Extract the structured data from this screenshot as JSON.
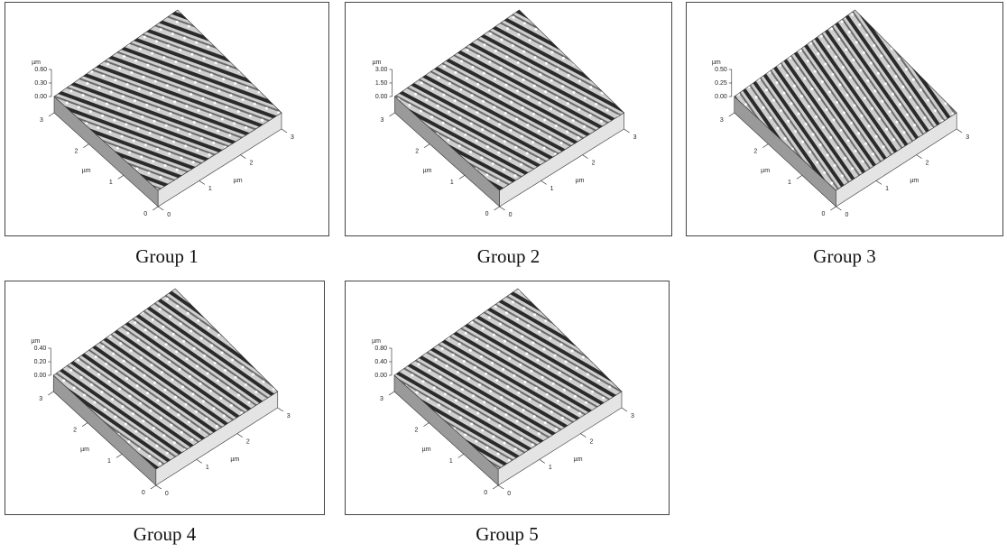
{
  "panels": [
    {
      "caption": "Group 1",
      "z_unit": "µm",
      "z_ticks": [
        "0.60",
        "0.30",
        "0.00"
      ],
      "y_ticks": [
        "0",
        "1",
        "2",
        "3"
      ],
      "y_unit": "µm",
      "x_ticks": [
        "0",
        "1",
        "2",
        "3"
      ],
      "x_unit": "µm"
    },
    {
      "caption": "Group 2",
      "z_unit": "µm",
      "z_ticks": [
        "3.00",
        "1.50",
        "0.00"
      ],
      "y_ticks": [
        "0",
        "1",
        "2",
        "3"
      ],
      "y_unit": "µm",
      "x_ticks": [
        "0",
        "1",
        "2",
        "3"
      ],
      "x_unit": "µm"
    },
    {
      "caption": "Group 3",
      "z_unit": "µm",
      "z_ticks": [
        "0.50",
        "0.25",
        "0.00"
      ],
      "y_ticks": [
        "0",
        "1",
        "2",
        "3"
      ],
      "y_unit": "µm",
      "x_ticks": [
        "0",
        "1",
        "2",
        "3"
      ],
      "x_unit": "µm"
    },
    {
      "caption": "Group 4",
      "z_unit": "µm",
      "z_ticks": [
        "0.40",
        "0.20",
        "0.00"
      ],
      "y_ticks": [
        "0",
        "1",
        "2",
        "3"
      ],
      "y_unit": "µm",
      "x_ticks": [
        "0",
        "1",
        "2",
        "3"
      ],
      "x_unit": "µm"
    },
    {
      "caption": "Group 5",
      "z_unit": "µm",
      "z_ticks": [
        "0.80",
        "0.40",
        "0.00"
      ],
      "y_ticks": [
        "0",
        "1",
        "2",
        "3"
      ],
      "y_unit": "µm",
      "x_ticks": [
        "0",
        "1",
        "2",
        "3"
      ],
      "x_unit": "µm"
    }
  ]
}
